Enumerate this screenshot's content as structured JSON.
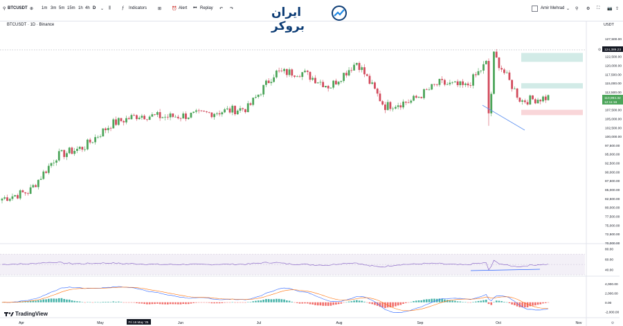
{
  "toolbar": {
    "symbol": "BTCUSDT",
    "intervals": [
      "1m",
      "3m",
      "5m",
      "15m",
      "1h",
      "4h",
      "D"
    ],
    "indicators_label": "Indicators",
    "alert_label": "Alert",
    "replay_label": "Replay",
    "user_label": "Amir Mehrad"
  },
  "logo_text": "ایران بروکر",
  "chart_header": {
    "title": "BTCUSDT · 1D · Binance",
    "currency": "USDT"
  },
  "price_axis": [
    "127,500.00",
    "122,500.00",
    "120,000.00",
    "117,500.00",
    "115,000.00",
    "112,500.00",
    "107,500.00",
    "105,000.00",
    "102,500.00",
    "100,000.00",
    "97,500.00",
    "95,000.00",
    "92,500.00",
    "90,000.00",
    "87,500.00",
    "85,000.00",
    "82,500.00",
    "80,000.00",
    "77,500.00",
    "75,000.00",
    "72,500.00",
    "70,000.00"
  ],
  "price_tags": {
    "high_label": "124,389.23",
    "last_price": "110,994.32",
    "countdown": "12:11:16"
  },
  "rsi_axis": [
    "80.00",
    "60.00",
    "40.00"
  ],
  "macd_axis": [
    "4,000.00",
    "2,000.00",
    "0.00",
    "-2,000.00"
  ],
  "time_axis": [
    "Apr",
    "May",
    "Fri 16 May '25",
    "Jun",
    "Jul",
    "Aug",
    "Sep",
    "Oct",
    "Nov"
  ],
  "corner_label": "⚙",
  "brand": "TradingView",
  "chart_data": {
    "type": "candlestick",
    "symbol": "BTCUSDT",
    "interval": "1D",
    "exchange": "Binance",
    "ylim": [
      70000,
      128000
    ],
    "series_close_approx": [
      {
        "x": "Apr",
        "y": 82500
      },
      {
        "x": "Apr mid",
        "y": 84500
      },
      {
        "x": "Apr end",
        "y": 94500
      },
      {
        "x": "May",
        "y": 97000
      },
      {
        "x": "May mid",
        "y": 103500
      },
      {
        "x": "May end",
        "y": 106000
      },
      {
        "x": "Jun",
        "y": 105500
      },
      {
        "x": "Jun mid",
        "y": 106000
      },
      {
        "x": "Jun end",
        "y": 107000
      },
      {
        "x": "Jul",
        "y": 108000
      },
      {
        "x": "Jul mid",
        "y": 118000
      },
      {
        "x": "Jul end",
        "y": 118000
      },
      {
        "x": "Aug",
        "y": 114000
      },
      {
        "x": "Aug mid",
        "y": 121000
      },
      {
        "x": "Aug end",
        "y": 108500
      },
      {
        "x": "Sep",
        "y": 110000
      },
      {
        "x": "Sep mid",
        "y": 115000
      },
      {
        "x": "Sep end",
        "y": 114000
      },
      {
        "x": "Oct",
        "y": 123000
      },
      {
        "x": "Oct mid",
        "y": 110000
      },
      {
        "x": "Oct end",
        "y": 110994
      }
    ],
    "zones": [
      {
        "type": "supply",
        "from": 121000,
        "to": 123500
      },
      {
        "type": "supply",
        "from": 113500,
        "to": 115000
      },
      {
        "type": "demand",
        "from": 106000,
        "to": 107500
      }
    ],
    "indicators": [
      "RSI",
      "MACD"
    ],
    "rsi_levels": [
      70,
      50,
      30
    ],
    "macd_ylim": [
      -3000,
      5000
    ]
  }
}
